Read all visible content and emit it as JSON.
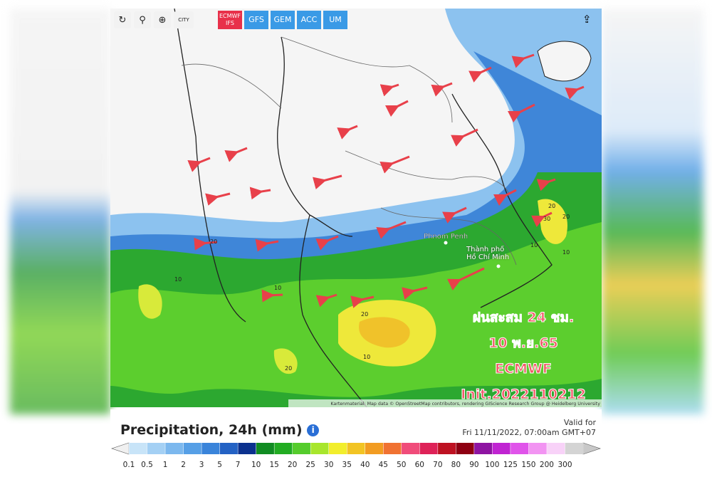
{
  "toolbar": {
    "buttons": [
      "ECMWF IFS",
      "GFS",
      "GEM",
      "ACC",
      "UM"
    ],
    "city_toggle": "CITY"
  },
  "map": {
    "places": [
      "Phnom Penh",
      "Thành phố Hồ Chí Minh"
    ],
    "contour_labels": [
      "20",
      "10",
      "20",
      "30",
      "10",
      "20",
      "10",
      "20",
      "10",
      "20",
      "10"
    ],
    "overlay": [
      "ฝนสะสม 24 ชม.",
      "10 พ.ย.65",
      "ECMWF",
      "Init.2022110212"
    ],
    "attribution": "Kartenmaterial: Map data © OpenStreetMap contributors, rendering GIScience Research Group @ Heidelberg University"
  },
  "footer": {
    "title": "Precipitation, 24h (mm)",
    "valid_label": "Valid for",
    "valid_time": "Fri 11/11/2022, 07:00am GMT+07"
  },
  "legend": {
    "values": [
      0.1,
      0.5,
      1,
      2,
      3,
      5,
      7,
      10,
      15,
      20,
      25,
      30,
      35,
      40,
      45,
      50,
      60,
      70,
      80,
      90,
      100,
      125,
      150,
      200,
      300
    ],
    "colors": [
      "#c8e4f8",
      "#a4d0f4",
      "#7cb8ee",
      "#569fe6",
      "#3a84da",
      "#2462c4",
      "#0c318e",
      "#118c22",
      "#22ac22",
      "#55cc2c",
      "#a8e62c",
      "#f2ee2c",
      "#f2c424",
      "#f29c22",
      "#f07232",
      "#f04c7a",
      "#de2258",
      "#be1222",
      "#8e0012",
      "#8e14a2",
      "#c024d2",
      "#e054ea",
      "#f294f2",
      "#f8d2f8",
      "#d4d4d4"
    ]
  }
}
